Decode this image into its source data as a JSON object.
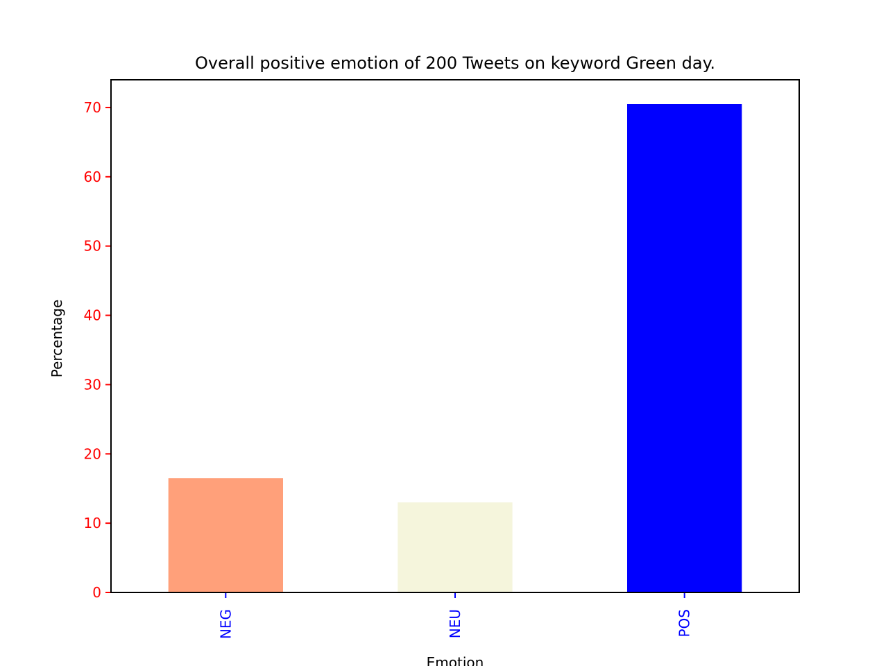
{
  "chart_data": {
    "type": "bar",
    "title": "Overall positive emotion of 200 Tweets on keyword Green day.",
    "xlabel": "Emotion",
    "ylabel": "Percentage",
    "categories": [
      "NEG",
      "NEU",
      "POS"
    ],
    "values": [
      16.5,
      13.0,
      70.5
    ],
    "bar_colors": [
      "#ffa07a",
      "#f5f5dc",
      "#0000ff"
    ],
    "ylim": [
      0,
      74
    ],
    "yticks": [
      0,
      10,
      20,
      30,
      40,
      50,
      60,
      70
    ],
    "ytick_color": "#ff0000",
    "xtick_color": "#0000ff",
    "grid": false,
    "legend": "none"
  }
}
